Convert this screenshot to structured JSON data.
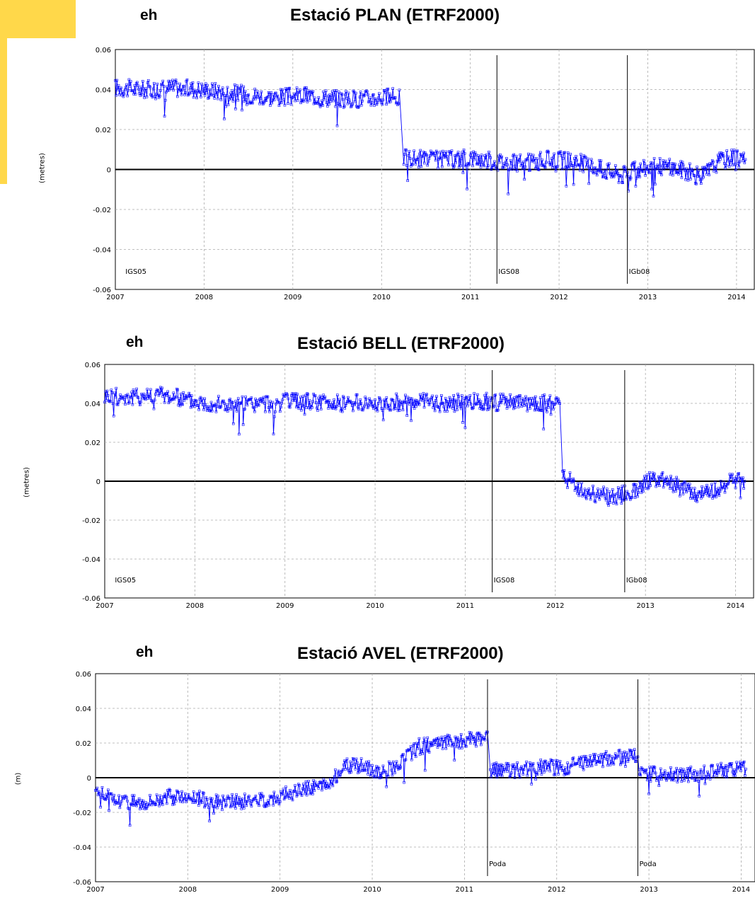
{
  "colors": {
    "series": "#0000ff",
    "accent_block": "#ffd84a",
    "grid": "#aaaaaa",
    "axis": "#000000"
  },
  "chart_data": [
    {
      "type": "line",
      "label": "eh",
      "title": "Estació PLAN (ETRF2000)",
      "ylabel": "(metres)",
      "xlim": [
        2007,
        2014.2
      ],
      "ylim": [
        -0.06,
        0.06
      ],
      "x_ticks": [
        "2007",
        "2008",
        "2009",
        "2010",
        "2011",
        "2012",
        "2013",
        "2014"
      ],
      "y_ticks": [
        "0.06",
        "0.04",
        "0.02",
        "0",
        "-0.02",
        "-0.04",
        "-0.06"
      ],
      "grid": true,
      "series": [
        {
          "values": [
            [
              2007.0,
              0.041
            ],
            [
              2007.3,
              0.04
            ],
            [
              2007.6,
              0.041
            ],
            [
              2008.0,
              0.04
            ],
            [
              2008.4,
              0.038
            ],
            [
              2008.8,
              0.036
            ],
            [
              2009.2,
              0.037
            ],
            [
              2009.6,
              0.035
            ],
            [
              2010.0,
              0.036
            ],
            [
              2010.2,
              0.036
            ],
            [
              2010.25,
              0.006
            ],
            [
              2010.5,
              0.005
            ],
            [
              2010.8,
              0.005
            ],
            [
              2011.0,
              0.006
            ],
            [
              2011.3,
              0.004
            ],
            [
              2011.6,
              0.003
            ],
            [
              2011.9,
              0.005
            ],
            [
              2012.2,
              0.004
            ],
            [
              2012.5,
              0.0
            ],
            [
              2012.7,
              -0.003
            ],
            [
              2012.9,
              0.0
            ],
            [
              2013.1,
              0.002
            ],
            [
              2013.4,
              0.0
            ],
            [
              2013.6,
              -0.004
            ],
            [
              2013.8,
              0.004
            ],
            [
              2014.0,
              0.007
            ],
            [
              2014.1,
              0.005
            ]
          ]
        }
      ],
      "events": [
        {
          "x": 2007.05,
          "label": "IGS05",
          "line": false
        },
        {
          "x": 2011.3,
          "label": "IGS08",
          "line": true
        },
        {
          "x": 2012.77,
          "label": "IGb08",
          "line": true
        }
      ]
    },
    {
      "type": "line",
      "label": "eh",
      "title": "Estació BELL (ETRF2000)",
      "ylabel": "(metres)",
      "xlim": [
        2007,
        2014.2
      ],
      "ylim": [
        -0.06,
        0.06
      ],
      "x_ticks": [
        "2007",
        "2008",
        "2009",
        "2010",
        "2011",
        "2012",
        "2013",
        "2014"
      ],
      "y_ticks": [
        "0.06",
        "0.04",
        "0.02",
        "0",
        "-0.02",
        "-0.04",
        "-0.06"
      ],
      "grid": true,
      "series": [
        {
          "values": [
            [
              2007.0,
              0.044
            ],
            [
              2007.3,
              0.043
            ],
            [
              2007.6,
              0.045
            ],
            [
              2008.0,
              0.041
            ],
            [
              2008.4,
              0.039
            ],
            [
              2008.8,
              0.04
            ],
            [
              2009.2,
              0.041
            ],
            [
              2009.6,
              0.04
            ],
            [
              2010.0,
              0.04
            ],
            [
              2010.4,
              0.041
            ],
            [
              2010.8,
              0.04
            ],
            [
              2011.2,
              0.041
            ],
            [
              2011.6,
              0.04
            ],
            [
              2012.05,
              0.04
            ],
            [
              2012.08,
              0.003
            ],
            [
              2012.3,
              -0.005
            ],
            [
              2012.6,
              -0.008
            ],
            [
              2012.85,
              -0.006
            ],
            [
              2013.0,
              0.0
            ],
            [
              2013.2,
              0.001
            ],
            [
              2013.5,
              -0.006
            ],
            [
              2013.8,
              -0.004
            ],
            [
              2014.0,
              0.001
            ],
            [
              2014.1,
              0.0
            ]
          ]
        }
      ],
      "events": [
        {
          "x": 2007.05,
          "label": "IGS05",
          "line": false
        },
        {
          "x": 2011.3,
          "label": "IGS08",
          "line": true
        },
        {
          "x": 2012.77,
          "label": "IGb08",
          "line": true
        }
      ]
    },
    {
      "type": "line",
      "label": "eh",
      "title": "Estació AVEL (ETRF2000)",
      "ylabel": "(m)",
      "xlim": [
        2007,
        2014.15
      ],
      "ylim": [
        -0.06,
        0.06
      ],
      "x_ticks": [
        "2007",
        "2008",
        "2009",
        "2010",
        "2011",
        "2012",
        "2013",
        "2014"
      ],
      "y_ticks": [
        "0.06",
        "0.04",
        "0.02",
        "0",
        "-0.02",
        "-0.04",
        "-0.06"
      ],
      "grid": true,
      "series": [
        {
          "values": [
            [
              2007.0,
              -0.006
            ],
            [
              2007.2,
              -0.013
            ],
            [
              2007.5,
              -0.014
            ],
            [
              2007.8,
              -0.011
            ],
            [
              2008.0,
              -0.011
            ],
            [
              2008.3,
              -0.014
            ],
            [
              2008.6,
              -0.014
            ],
            [
              2008.9,
              -0.012
            ],
            [
              2009.2,
              -0.008
            ],
            [
              2009.4,
              -0.004
            ],
            [
              2009.5,
              -0.005
            ],
            [
              2009.7,
              0.007
            ],
            [
              2009.9,
              0.007
            ],
            [
              2010.1,
              0.003
            ],
            [
              2010.3,
              0.008
            ],
            [
              2010.5,
              0.018
            ],
            [
              2010.7,
              0.02
            ],
            [
              2010.9,
              0.021
            ],
            [
              2011.1,
              0.022
            ],
            [
              2011.25,
              0.022
            ],
            [
              2011.28,
              0.004
            ],
            [
              2011.5,
              0.004
            ],
            [
              2011.8,
              0.006
            ],
            [
              2012.1,
              0.006
            ],
            [
              2012.4,
              0.01
            ],
            [
              2012.7,
              0.012
            ],
            [
              2012.88,
              0.014
            ],
            [
              2012.9,
              0.002
            ],
            [
              2013.2,
              0.002
            ],
            [
              2013.5,
              0.002
            ],
            [
              2013.8,
              0.004
            ],
            [
              2014.05,
              0.005
            ]
          ]
        }
      ],
      "events": [
        {
          "x": 2011.25,
          "label": "Poda",
          "line": true
        },
        {
          "x": 2012.88,
          "label": "Poda",
          "line": true
        }
      ]
    }
  ]
}
